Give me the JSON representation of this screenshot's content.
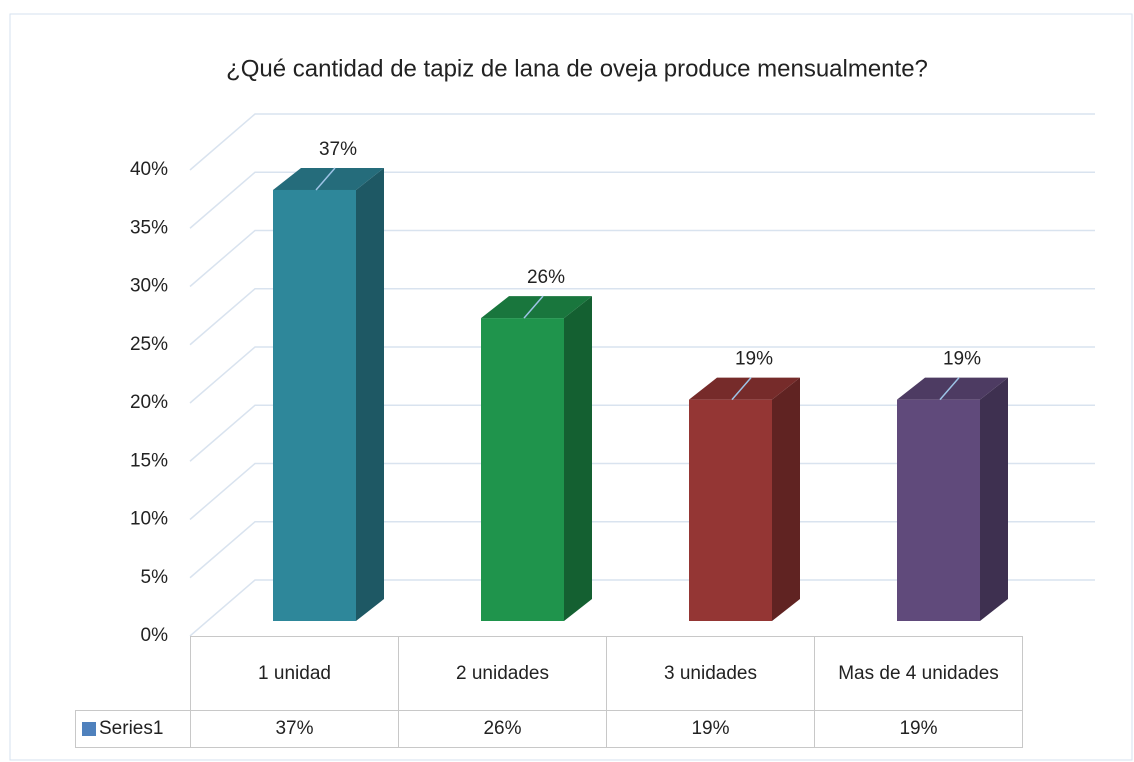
{
  "chart_data": {
    "type": "bar3d",
    "title": "¿Qué cantidad de tapiz de lana de oveja produce mensualmente?",
    "categories": [
      "1 unidad",
      "2 unidades",
      "3 unidades",
      "Mas de 4 unidades"
    ],
    "series": [
      {
        "name": "Series1",
        "color": "#4f81bd",
        "values": [
          37,
          26,
          19,
          19
        ],
        "value_labels": [
          "37%",
          "26%",
          "19%",
          "19%"
        ],
        "colors": [
          "#2e879a",
          "#1f944c",
          "#943634",
          "#604a7b"
        ]
      }
    ],
    "ylim": [
      0,
      40
    ],
    "yticks": [
      {
        "value": 0,
        "label": "0%"
      },
      {
        "value": 5,
        "label": "5%"
      },
      {
        "value": 10,
        "label": "10%"
      },
      {
        "value": 15,
        "label": "15%"
      },
      {
        "value": 20,
        "label": "20%"
      },
      {
        "value": 25,
        "label": "25%"
      },
      {
        "value": 30,
        "label": "30%"
      },
      {
        "value": 35,
        "label": "35%"
      },
      {
        "value": 40,
        "label": "40%"
      }
    ],
    "grid": true,
    "data_table": true
  }
}
